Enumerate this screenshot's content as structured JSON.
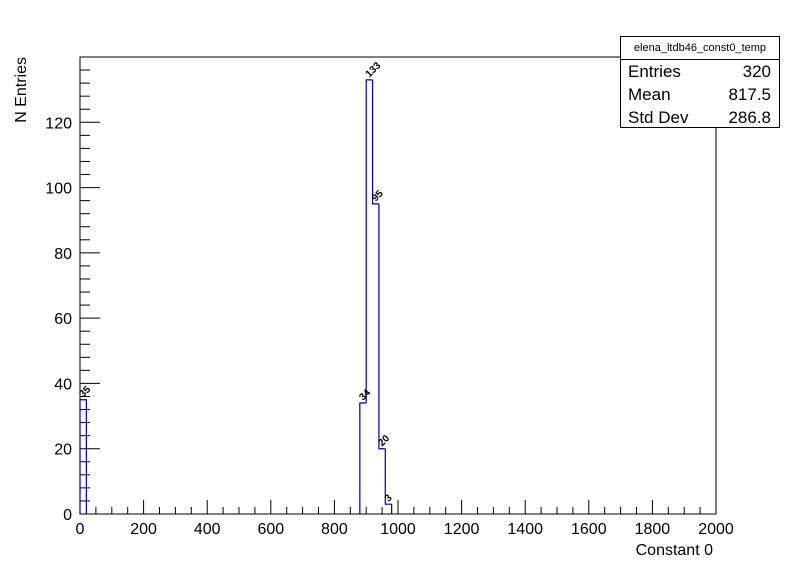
{
  "chart_data": {
    "type": "bar",
    "style": "step-histogram",
    "title": "",
    "xlabel": "Constant 0",
    "ylabel": "N Entries",
    "xlim": [
      0,
      2000
    ],
    "ylim": [
      0,
      140
    ],
    "x_ticks": [
      0,
      200,
      400,
      600,
      800,
      1000,
      1200,
      1400,
      1600,
      1800,
      2000
    ],
    "y_ticks": [
      0,
      20,
      40,
      60,
      80,
      100,
      120
    ],
    "bin_width": 20,
    "bins": [
      {
        "x": 0,
        "value": 35
      },
      {
        "x": 880,
        "value": 34
      },
      {
        "x": 900,
        "value": 133
      },
      {
        "x": 920,
        "value": 95
      },
      {
        "x": 940,
        "value": 20
      },
      {
        "x": 960,
        "value": 3
      }
    ],
    "line_color": "#000099",
    "grid": false,
    "legend": "none"
  },
  "stats": {
    "title": "elena_ltdb46_const0_temp",
    "rows": [
      {
        "label": "Entries",
        "value": "320"
      },
      {
        "label": "Mean",
        "value": "817.5"
      },
      {
        "label": "Std Dev",
        "value": "286.8"
      }
    ]
  }
}
